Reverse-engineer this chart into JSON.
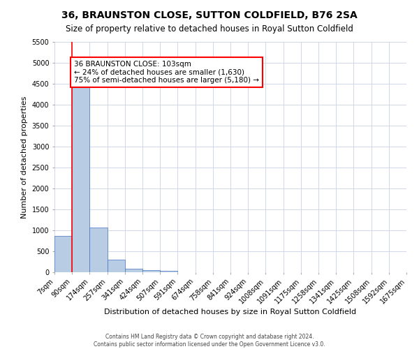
{
  "title": "36, BRAUNSTON CLOSE, SUTTON COLDFIELD, B76 2SA",
  "subtitle": "Size of property relative to detached houses in Royal Sutton Coldfield",
  "xlabel": "Distribution of detached houses by size in Royal Sutton Coldfield",
  "ylabel": "Number of detached properties",
  "footer_line1": "Contains HM Land Registry data © Crown copyright and database right 2024.",
  "footer_line2": "Contains public sector information licensed under the Open Government Licence v3.0.",
  "bin_labels": [
    "7sqm",
    "90sqm",
    "174sqm",
    "257sqm",
    "341sqm",
    "424sqm",
    "507sqm",
    "591sqm",
    "674sqm",
    "758sqm",
    "841sqm",
    "924sqm",
    "1008sqm",
    "1091sqm",
    "1175sqm",
    "1258sqm",
    "1341sqm",
    "1425sqm",
    "1508sqm",
    "1592sqm",
    "1675sqm"
  ],
  "bar_values": [
    870,
    4620,
    1060,
    300,
    80,
    50,
    30,
    0,
    0,
    0,
    0,
    0,
    0,
    0,
    0,
    0,
    0,
    0,
    0,
    0
  ],
  "bar_color": "#b8cce4",
  "bar_edge_color": "#4472c4",
  "ylim": [
    0,
    5500
  ],
  "yticks": [
    0,
    500,
    1000,
    1500,
    2000,
    2500,
    3000,
    3500,
    4000,
    4500,
    5000,
    5500
  ],
  "property_bin_index": 1,
  "red_line_color": "#ff0000",
  "annotation_line1": "36 BRAUNSTON CLOSE: 103sqm",
  "annotation_line2": "← 24% of detached houses are smaller (1,630)",
  "annotation_line3": "75% of semi-detached houses are larger (5,180) →",
  "annotation_box_color": "#ff0000",
  "grid_color": "#d0d8e8",
  "background_color": "#ffffff",
  "title_fontsize": 10,
  "subtitle_fontsize": 8.5,
  "ylabel_fontsize": 8,
  "xlabel_fontsize": 8,
  "tick_fontsize": 7,
  "annotation_fontsize": 7.5,
  "footer_fontsize": 5.5
}
